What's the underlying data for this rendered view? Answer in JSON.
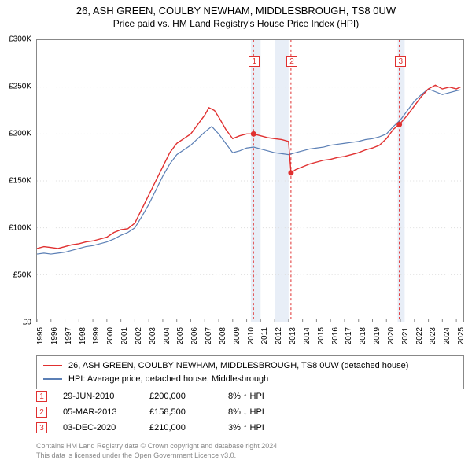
{
  "title": {
    "main": "26, ASH GREEN, COULBY NEWHAM, MIDDLESBROUGH, TS8 0UW",
    "sub": "Price paid vs. HM Land Registry's House Price Index (HPI)"
  },
  "chart": {
    "type": "line",
    "xlim": [
      1995,
      2025.5
    ],
    "ylim": [
      0,
      300000
    ],
    "xtick_step": 1,
    "ytick_step": 50000,
    "y_tick_labels": [
      "£0",
      "£50K",
      "£100K",
      "£150K",
      "£200K",
      "£250K",
      "£300K"
    ],
    "x_tick_labels": [
      "1995",
      "1996",
      "1997",
      "1998",
      "1999",
      "2000",
      "2001",
      "2002",
      "2003",
      "2004",
      "2005",
      "2006",
      "2007",
      "2008",
      "2009",
      "2010",
      "2011",
      "2012",
      "2013",
      "2014",
      "2015",
      "2016",
      "2017",
      "2018",
      "2019",
      "2020",
      "2021",
      "2022",
      "2023",
      "2024",
      "2025"
    ],
    "background_color": "#ffffff",
    "grid_color": "#dddddd",
    "axis_color": "#888888",
    "label_fontsize": 10,
    "vertical_bands": [
      {
        "from": 2010.3,
        "to": 2011.0,
        "color": "#e8eef7"
      },
      {
        "from": 2012.0,
        "to": 2013.0,
        "color": "#e8eef7"
      },
      {
        "from": 2020.8,
        "to": 2021.3,
        "color": "#e8eef7"
      }
    ],
    "event_lines": [
      {
        "x": 2010.49,
        "color": "#e03030",
        "dash": "3,3"
      },
      {
        "x": 2013.17,
        "color": "#e03030",
        "dash": "3,3"
      },
      {
        "x": 2020.92,
        "color": "#e03030",
        "dash": "3,3"
      }
    ],
    "series": [
      {
        "name": "property",
        "label": "26, ASH GREEN, COULBY NEWHAM, MIDDLESBROUGH, TS8 0UW (detached house)",
        "color": "#e03030",
        "line_width": 1.4,
        "data": [
          [
            1995.0,
            78000
          ],
          [
            1995.5,
            80000
          ],
          [
            1996.0,
            79000
          ],
          [
            1996.5,
            78000
          ],
          [
            1997.0,
            80000
          ],
          [
            1997.5,
            82000
          ],
          [
            1998.0,
            83000
          ],
          [
            1998.5,
            85000
          ],
          [
            1999.0,
            86000
          ],
          [
            1999.5,
            88000
          ],
          [
            2000.0,
            90000
          ],
          [
            2000.5,
            95000
          ],
          [
            2001.0,
            98000
          ],
          [
            2001.5,
            99000
          ],
          [
            2002.0,
            105000
          ],
          [
            2002.5,
            120000
          ],
          [
            2003.0,
            135000
          ],
          [
            2003.5,
            150000
          ],
          [
            2004.0,
            165000
          ],
          [
            2004.5,
            180000
          ],
          [
            2005.0,
            190000
          ],
          [
            2005.5,
            195000
          ],
          [
            2006.0,
            200000
          ],
          [
            2006.5,
            210000
          ],
          [
            2007.0,
            220000
          ],
          [
            2007.3,
            228000
          ],
          [
            2007.7,
            225000
          ],
          [
            2008.0,
            218000
          ],
          [
            2008.5,
            205000
          ],
          [
            2009.0,
            195000
          ],
          [
            2009.5,
            198000
          ],
          [
            2010.0,
            200000
          ],
          [
            2010.49,
            200000
          ],
          [
            2011.0,
            198000
          ],
          [
            2011.5,
            196000
          ],
          [
            2012.0,
            195000
          ],
          [
            2012.5,
            194000
          ],
          [
            2013.0,
            192000
          ],
          [
            2013.17,
            158500
          ],
          [
            2013.5,
            162000
          ],
          [
            2014.0,
            165000
          ],
          [
            2014.5,
            168000
          ],
          [
            2015.0,
            170000
          ],
          [
            2015.5,
            172000
          ],
          [
            2016.0,
            173000
          ],
          [
            2016.5,
            175000
          ],
          [
            2017.0,
            176000
          ],
          [
            2017.5,
            178000
          ],
          [
            2018.0,
            180000
          ],
          [
            2018.5,
            183000
          ],
          [
            2019.0,
            185000
          ],
          [
            2019.5,
            188000
          ],
          [
            2020.0,
            195000
          ],
          [
            2020.5,
            205000
          ],
          [
            2020.92,
            210000
          ],
          [
            2021.5,
            220000
          ],
          [
            2022.0,
            230000
          ],
          [
            2022.5,
            240000
          ],
          [
            2023.0,
            248000
          ],
          [
            2023.5,
            252000
          ],
          [
            2024.0,
            248000
          ],
          [
            2024.5,
            250000
          ],
          [
            2025.0,
            248000
          ],
          [
            2025.3,
            250000
          ]
        ]
      },
      {
        "name": "hpi",
        "label": "HPI: Average price, detached house, Middlesbrough",
        "color": "#5b7fb5",
        "line_width": 1.2,
        "data": [
          [
            1995.0,
            72000
          ],
          [
            1995.5,
            73000
          ],
          [
            1996.0,
            72000
          ],
          [
            1996.5,
            73000
          ],
          [
            1997.0,
            74000
          ],
          [
            1997.5,
            76000
          ],
          [
            1998.0,
            78000
          ],
          [
            1998.5,
            80000
          ],
          [
            1999.0,
            81000
          ],
          [
            1999.5,
            83000
          ],
          [
            2000.0,
            85000
          ],
          [
            2000.5,
            88000
          ],
          [
            2001.0,
            92000
          ],
          [
            2001.5,
            95000
          ],
          [
            2002.0,
            100000
          ],
          [
            2002.5,
            112000
          ],
          [
            2003.0,
            125000
          ],
          [
            2003.5,
            140000
          ],
          [
            2004.0,
            155000
          ],
          [
            2004.5,
            168000
          ],
          [
            2005.0,
            178000
          ],
          [
            2005.5,
            183000
          ],
          [
            2006.0,
            188000
          ],
          [
            2006.5,
            195000
          ],
          [
            2007.0,
            202000
          ],
          [
            2007.5,
            208000
          ],
          [
            2008.0,
            200000
          ],
          [
            2008.5,
            190000
          ],
          [
            2009.0,
            180000
          ],
          [
            2009.5,
            182000
          ],
          [
            2010.0,
            185000
          ],
          [
            2010.5,
            186000
          ],
          [
            2011.0,
            184000
          ],
          [
            2011.5,
            182000
          ],
          [
            2012.0,
            180000
          ],
          [
            2012.5,
            179000
          ],
          [
            2013.0,
            178000
          ],
          [
            2013.5,
            180000
          ],
          [
            2014.0,
            182000
          ],
          [
            2014.5,
            184000
          ],
          [
            2015.0,
            185000
          ],
          [
            2015.5,
            186000
          ],
          [
            2016.0,
            188000
          ],
          [
            2016.5,
            189000
          ],
          [
            2017.0,
            190000
          ],
          [
            2017.5,
            191000
          ],
          [
            2018.0,
            192000
          ],
          [
            2018.5,
            194000
          ],
          [
            2019.0,
            195000
          ],
          [
            2019.5,
            197000
          ],
          [
            2020.0,
            200000
          ],
          [
            2020.5,
            208000
          ],
          [
            2021.0,
            215000
          ],
          [
            2021.5,
            225000
          ],
          [
            2022.0,
            235000
          ],
          [
            2022.5,
            242000
          ],
          [
            2023.0,
            248000
          ],
          [
            2023.5,
            245000
          ],
          [
            2024.0,
            242000
          ],
          [
            2024.5,
            244000
          ],
          [
            2025.0,
            246000
          ],
          [
            2025.3,
            247000
          ]
        ]
      }
    ],
    "event_markers_on_chart": [
      {
        "n": "1",
        "x": 2010.49,
        "color": "#e03030"
      },
      {
        "n": "2",
        "x": 2013.17,
        "color": "#e03030"
      },
      {
        "n": "3",
        "x": 2020.92,
        "color": "#e03030"
      }
    ],
    "event_points": [
      {
        "x": 2010.49,
        "y": 200000,
        "color": "#e03030"
      },
      {
        "x": 2013.17,
        "y": 158500,
        "color": "#e03030"
      },
      {
        "x": 2020.92,
        "y": 210000,
        "color": "#e03030"
      }
    ]
  },
  "legend": {
    "items": [
      {
        "color": "#e03030",
        "label": "26, ASH GREEN, COULBY NEWHAM, MIDDLESBROUGH, TS8 0UW (detached house)"
      },
      {
        "color": "#5b7fb5",
        "label": "HPI: Average price, detached house, Middlesbrough"
      }
    ]
  },
  "events": [
    {
      "n": "1",
      "color": "#e03030",
      "date": "29-JUN-2010",
      "price": "£200,000",
      "delta": "8% ↑ HPI"
    },
    {
      "n": "2",
      "color": "#e03030",
      "date": "05-MAR-2013",
      "price": "£158,500",
      "delta": "8% ↓ HPI"
    },
    {
      "n": "3",
      "color": "#e03030",
      "date": "03-DEC-2020",
      "price": "£210,000",
      "delta": "3% ↑ HPI"
    }
  ],
  "footer": {
    "line1": "Contains HM Land Registry data © Crown copyright and database right 2024.",
    "line2": "This data is licensed under the Open Government Licence v3.0."
  }
}
